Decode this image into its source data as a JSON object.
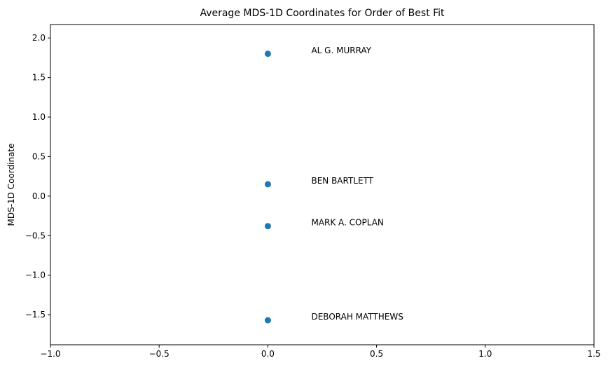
{
  "chart_data": {
    "type": "scatter",
    "title": "Average MDS-1D Coordinates for Order of Best Fit",
    "xlabel": "",
    "ylabel": "MDS-1D Coordinate",
    "xlim": [
      -1.0,
      1.5
    ],
    "ylim": [
      -1.88,
      2.17
    ],
    "grid": false,
    "marker_color": "#1f77b4",
    "x_ticks": [
      -1.0,
      -0.5,
      0.0,
      0.5,
      1.0,
      1.5
    ],
    "x_tick_labels": [
      "−1.0",
      "−0.5",
      "0.0",
      "0.5",
      "1.0",
      "1.5"
    ],
    "y_ticks": [
      2.0,
      1.5,
      1.0,
      0.5,
      0.0,
      -0.5,
      -1.0,
      -1.5
    ],
    "y_tick_labels": [
      "2.0",
      "1.5",
      "1.0",
      "0.5",
      "0.0",
      "−0.5",
      "−1.0",
      "−1.5"
    ],
    "points": [
      {
        "label": "AL G. MURRAY",
        "x": 0.0,
        "y": 1.8
      },
      {
        "label": "BEN BARTLETT",
        "x": 0.0,
        "y": 0.15
      },
      {
        "label": "MARK A. COPLAN",
        "x": 0.0,
        "y": -0.38
      },
      {
        "label": "DEBORAH MATTHEWS",
        "x": 0.0,
        "y": -1.57
      }
    ],
    "annotation_x": 0.2
  }
}
